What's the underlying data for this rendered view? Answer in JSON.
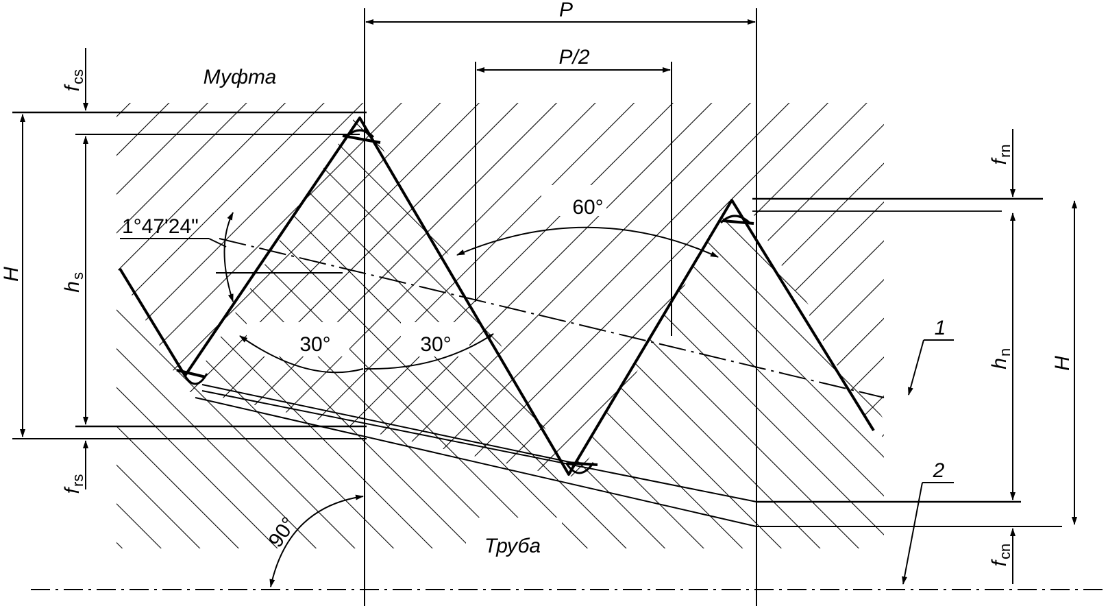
{
  "labels": {
    "pitch": "P",
    "half_pitch": "P/2",
    "coupling": "Муфта",
    "pipe": "Труба",
    "taper_angle": "1°47'24\"",
    "thread_angle": "60°",
    "flank_left": "30°",
    "flank_right": "30°",
    "right_angle": "90°",
    "callout_1": "1",
    "callout_2": "2",
    "height_left": "H",
    "height_right": "H",
    "h_s": "h",
    "h_s_sub": "s",
    "h_n": "h",
    "h_n_sub": "n",
    "f_cs": "f",
    "f_cs_sub": "cs",
    "f_rs": "f",
    "f_rs_sub": "rs",
    "f_rn": "f",
    "f_rn_sub": "rn",
    "f_cn": "f",
    "f_cn_sub": "cn"
  },
  "colors": {
    "line": "#000000",
    "background": "#ffffff"
  }
}
